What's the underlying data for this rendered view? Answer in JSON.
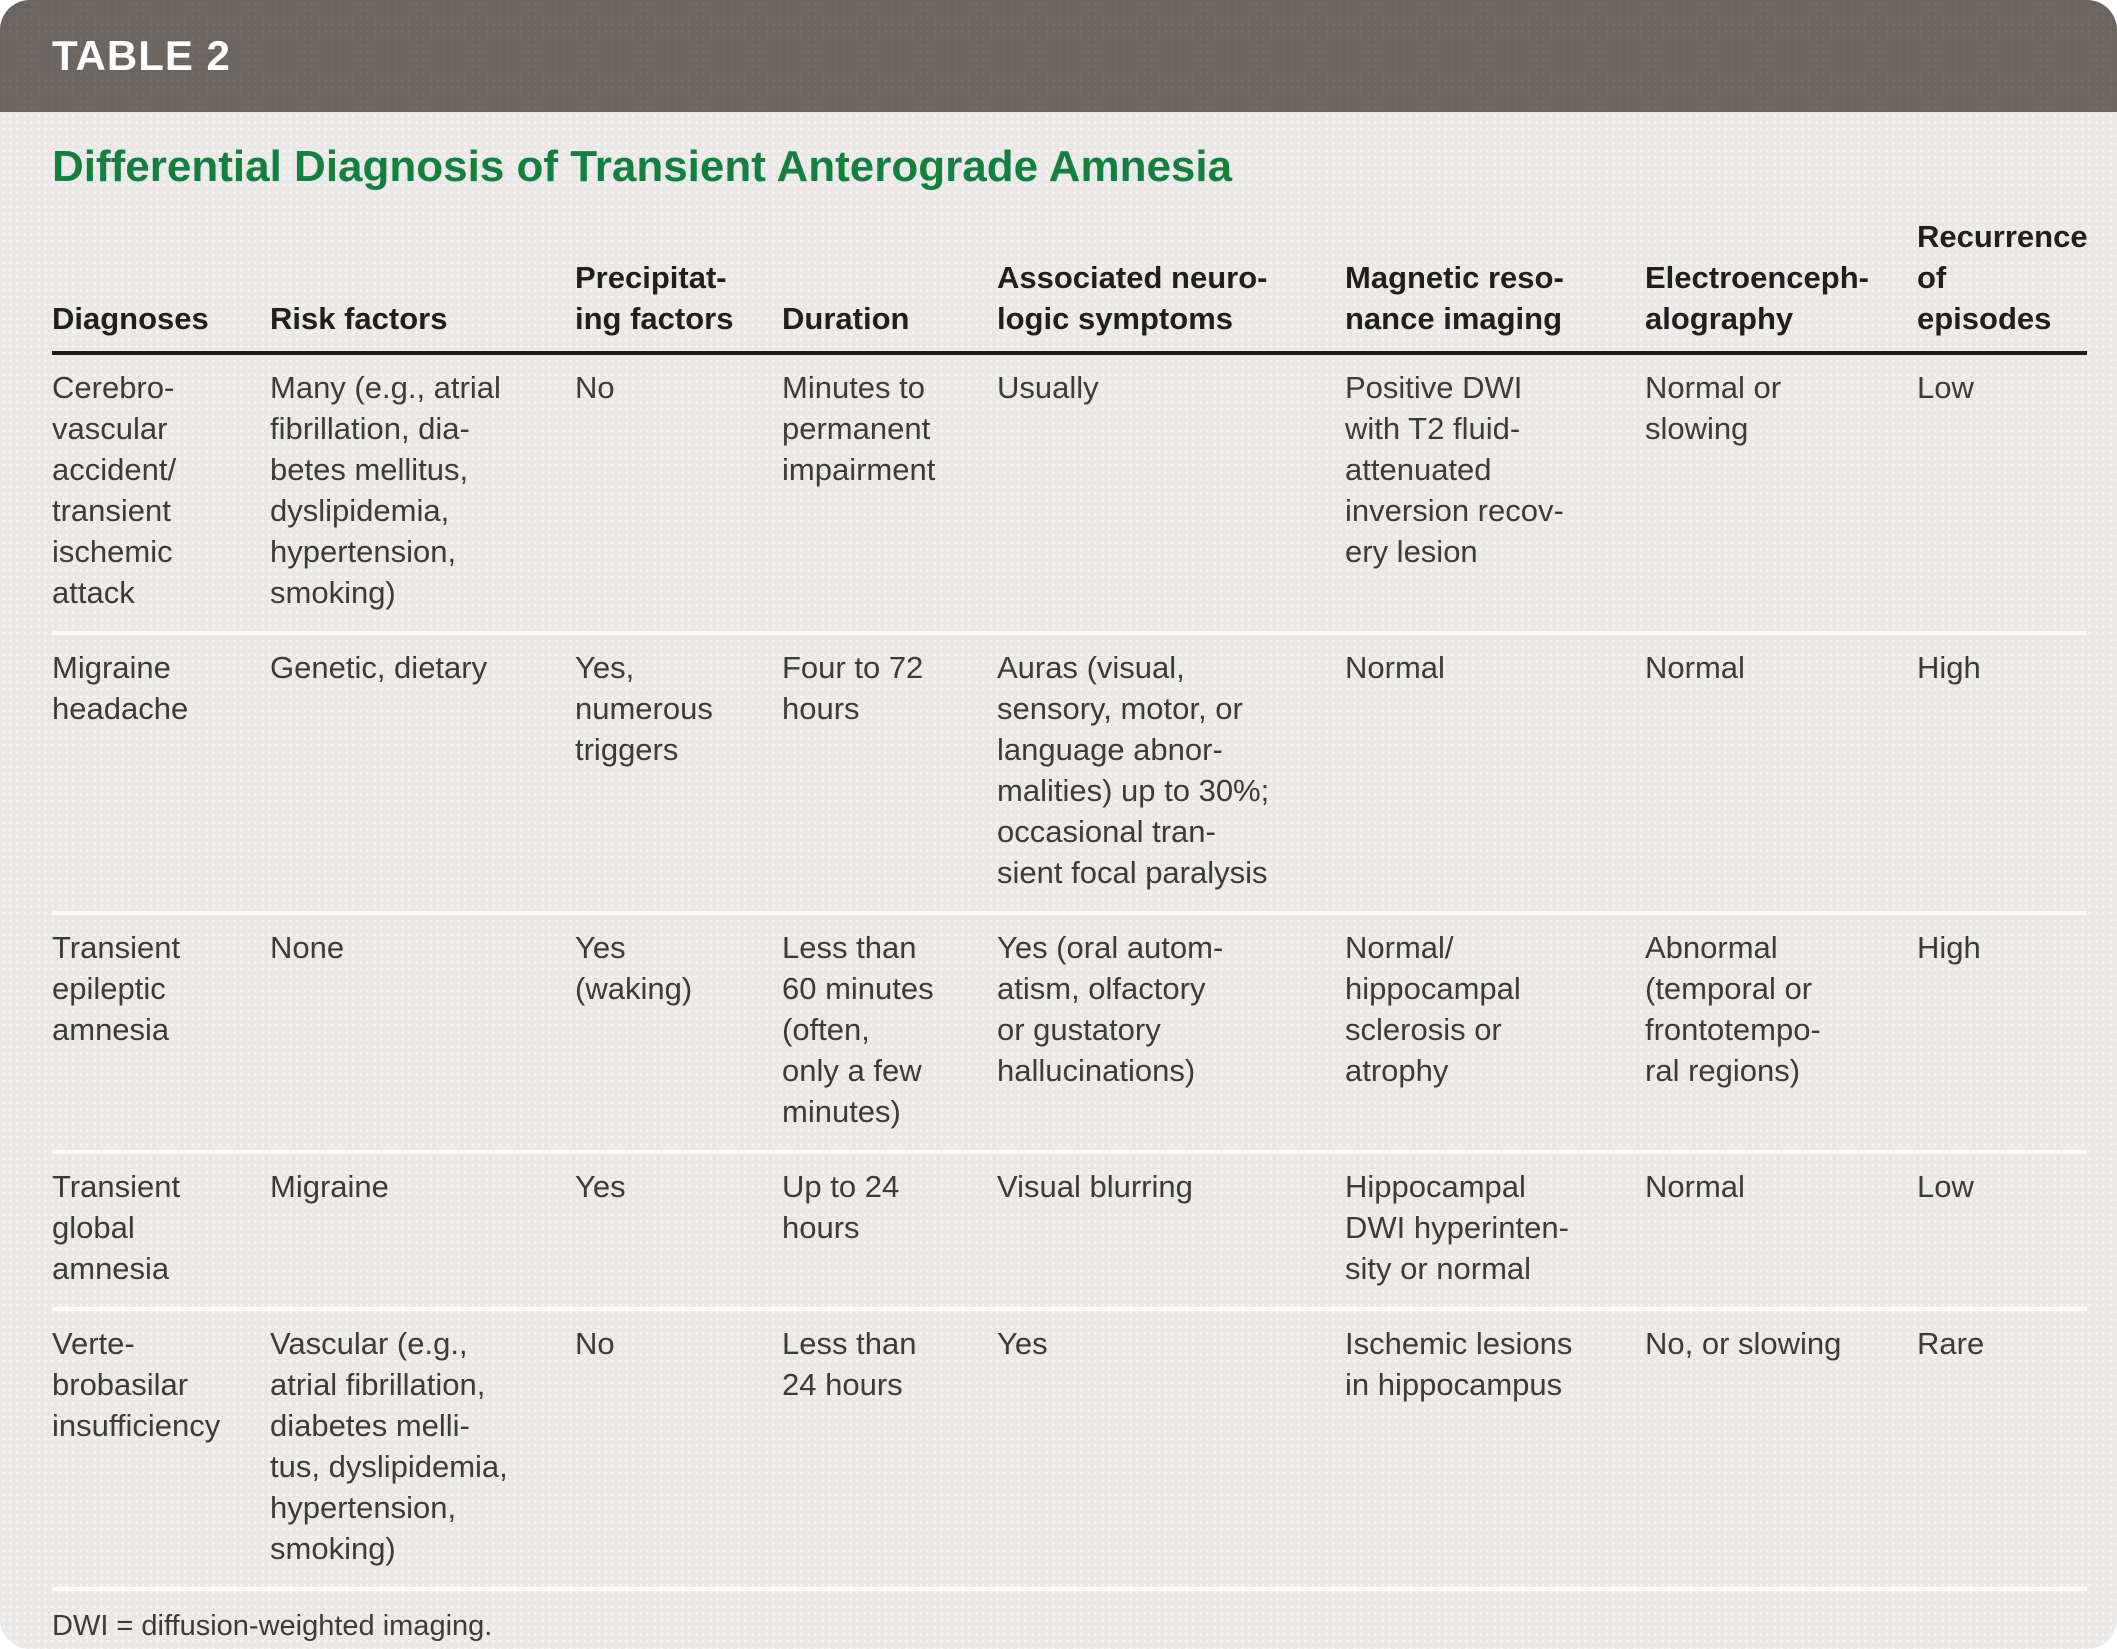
{
  "table_label": "TABLE 2",
  "title": "Differential Diagnosis of Transient Anterograde Amnesia",
  "colors": {
    "header_bar": "#6c6460",
    "title_green": "#13803e",
    "body_bg": "#eae9e7",
    "text": "#3d3b39",
    "header_rule": "#1d1c1b",
    "row_rule": "#fcfbfa"
  },
  "columns": [
    "Diagnoses",
    "Risk factors",
    "Precipitat-\ning factors",
    "Duration",
    "Associated neuro-\nlogic symptoms",
    "Magnetic reso-\nnance imaging",
    "Electroenceph-\nalography",
    "Recurrence\nof episodes"
  ],
  "rows": [
    [
      "Cerebro-\nvascular\naccident/\ntransient\nischemic\nattack",
      "Many (e.g., atrial\nfibrillation, dia-\nbetes mellitus,\ndyslipidemia,\nhypertension,\nsmoking)",
      "No",
      "Minutes to\npermanent\nimpairment",
      "Usually",
      "Positive DWI\nwith T2 fluid-\nattenuated\ninversion recov-\nery lesion",
      "Normal or\nslowing",
      "Low"
    ],
    [
      "Migraine\nheadache",
      "Genetic, dietary",
      "Yes,\nnumerous\ntriggers",
      "Four to 72\nhours",
      "Auras (visual,\nsensory, motor, or\nlanguage abnor-\nmalities) up to 30%;\noccasional tran-\nsient focal paralysis",
      "Normal",
      "Normal",
      "High"
    ],
    [
      "Transient\nepileptic\namnesia",
      "None",
      "Yes\n(waking)",
      "Less than\n60 minutes\n(often,\nonly a few\nminutes)",
      "Yes (oral autom-\natism, olfactory\nor gustatory\nhallucinations)",
      "Normal/\nhippocampal\nsclerosis or\natrophy",
      "Abnormal\n(temporal or\nfrontotempo-\nral regions)",
      "High"
    ],
    [
      "Transient\nglobal\namnesia",
      "Migraine",
      "Yes",
      "Up to 24\nhours",
      "Visual blurring",
      "Hippocampal\nDWI hyperinten-\nsity or normal",
      "Normal",
      "Low"
    ],
    [
      "Verte-\nbrobasilar\ninsufficiency",
      "Vascular (e.g.,\natrial fibrillation,\ndiabetes melli-\ntus, dyslipidemia,\nhypertension,\nsmoking)",
      "No",
      "Less than\n24 hours",
      "Yes",
      "Ischemic lesions\nin hippocampus",
      "No, or slowing",
      "Rare"
    ]
  ],
  "footnote": "DWI = diffusion-weighted imaging."
}
